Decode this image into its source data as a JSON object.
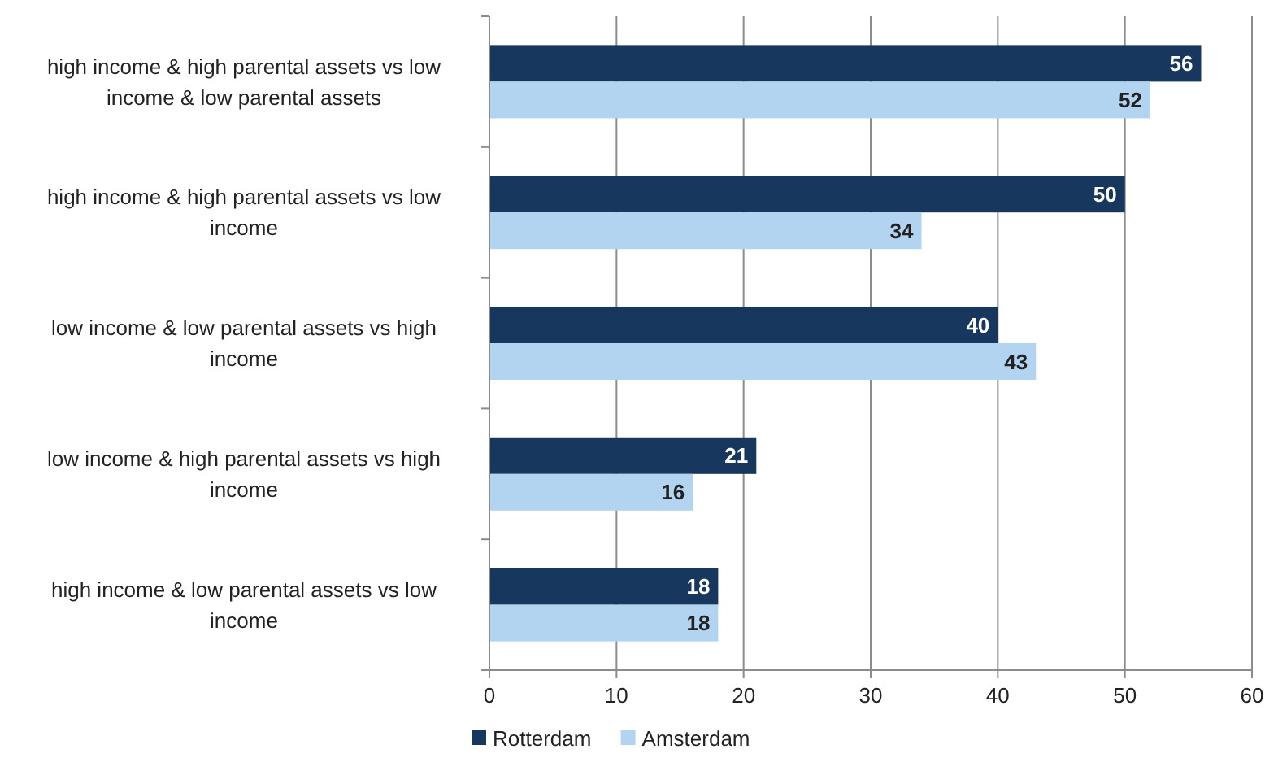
{
  "chart_data": {
    "type": "bar",
    "orientation": "horizontal",
    "categories": [
      "high income & high parental assets vs low income & low parental assets",
      "high income & high parental assets vs low income",
      "low income & low parental assets vs high income",
      "low income & high parental assets vs high income",
      "high income & low parental assets vs low income"
    ],
    "series": [
      {
        "name": "Rotterdam",
        "color": "#17375e",
        "values": [
          56,
          50,
          40,
          21,
          18
        ]
      },
      {
        "name": "Amsterdam",
        "color": "#b3d4f0",
        "values": [
          52,
          34,
          43,
          16,
          18
        ]
      }
    ],
    "xlim": [
      0,
      60
    ],
    "xticks": [
      0,
      10,
      20,
      30,
      40,
      50,
      60
    ],
    "grid": "x",
    "legend": "bottom",
    "data_labels": true
  }
}
